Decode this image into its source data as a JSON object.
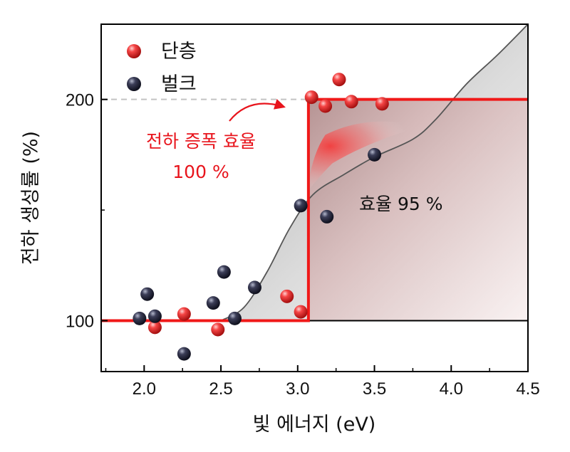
{
  "chart_data": {
    "type": "scatter",
    "xlabel": "빛 에너지 (eV)",
    "ylabel": "전하 생성률 (%)",
    "xlim": [
      1.72,
      4.5
    ],
    "ylim": [
      77,
      234
    ],
    "xticks": [
      2.0,
      2.5,
      3.0,
      3.5,
      4.0,
      4.5
    ],
    "xtick_labels": [
      "2.0",
      "2.5",
      "3.0",
      "3.5",
      "4.0",
      "4.5"
    ],
    "yticks": [
      100,
      200
    ],
    "ytick_labels": [
      "100",
      "200"
    ],
    "legend_position": "top-left",
    "series": [
      {
        "name": "단층",
        "color": "#f23a3a",
        "x": [
          2.07,
          2.26,
          2.48,
          2.93,
          3.02,
          3.09,
          3.18,
          3.27,
          3.35,
          3.55
        ],
        "y": [
          97,
          103,
          96,
          111,
          104,
          201,
          197,
          209,
          199,
          198
        ]
      },
      {
        "name": "벌크",
        "color": "#33334a",
        "x": [
          1.97,
          2.02,
          2.07,
          2.26,
          2.45,
          2.52,
          2.59,
          2.72,
          3.02,
          3.19,
          3.5
        ],
        "y": [
          101,
          112,
          102,
          85,
          108,
          122,
          101,
          115,
          152,
          147,
          175
        ]
      }
    ],
    "step_curve": {
      "name": "전하 증폭 효율 100 %",
      "color": "#f01818",
      "x": [
        1.72,
        3.07,
        3.07,
        4.5
      ],
      "y": [
        100,
        100,
        200,
        200
      ]
    },
    "smooth_curve": {
      "name": "효율 95 %",
      "color": "#555555",
      "x": [
        2.5,
        2.65,
        2.8,
        2.95,
        3.1,
        3.3,
        3.5,
        3.75,
        3.9,
        4.1,
        4.3,
        4.5
      ],
      "y": [
        100,
        106,
        122,
        142,
        157,
        166,
        174,
        182,
        191,
        207,
        220,
        234
      ]
    },
    "reference_line": {
      "y": 200,
      "style": "dashed",
      "color": "#bbbbbb"
    },
    "baseline": {
      "y": 100,
      "color": "#000000"
    },
    "annotations": [
      {
        "text_lines": [
          "전하 증폭 효율",
          "100 %"
        ],
        "color": "#e8141c"
      },
      {
        "text": "효율  95 %",
        "color": "#111111"
      }
    ]
  }
}
